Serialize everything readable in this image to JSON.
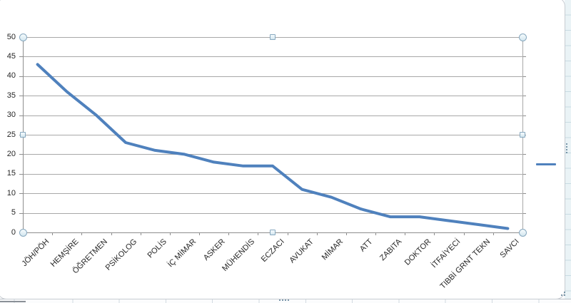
{
  "chart_data": {
    "type": "line",
    "title": "",
    "categories": [
      "JÖH/PÖH",
      "HEMŞİRE",
      "ÖĞRETMEN",
      "PSİKOLOG",
      "POLİS",
      "İÇ MİMAR",
      "ASKER",
      "MÜHENDİS",
      "ECZACI",
      "AVUKAT",
      "MİMAR",
      "ATT",
      "ZABITA",
      "DOKTOR",
      "İTFAİYECİ",
      "TIBBİ GRNT TEKN",
      "SAVCI"
    ],
    "series": [
      {
        "name": "",
        "color": "#4F81BD",
        "values": [
          43,
          36,
          30,
          23,
          21,
          20,
          18,
          17,
          17,
          11,
          9,
          6,
          4,
          4,
          3,
          2,
          1
        ]
      }
    ],
    "xlabel": "",
    "ylabel": "",
    "ylim": [
      0,
      50
    ],
    "ytick_step": 5,
    "y_tick_labels": [
      "0",
      "5",
      "10",
      "15",
      "20",
      "25",
      "30",
      "35",
      "40",
      "45",
      "50"
    ],
    "grid": true,
    "legend_position": "right-middle"
  },
  "colors": {
    "series_line": "#4F81BD",
    "gridline": "#A8A8A8",
    "axis_line": "#8E8E8E",
    "tick_label": "#262626",
    "frame_border": "#C7CCD2"
  }
}
